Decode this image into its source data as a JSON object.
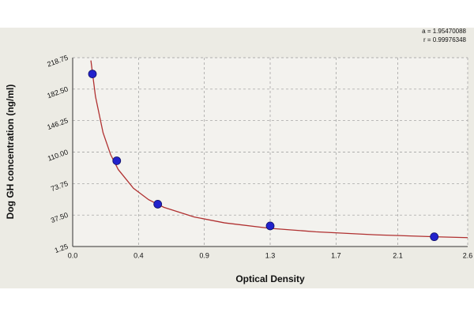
{
  "chart_data": {
    "type": "scatter",
    "x_label": "Optical Density",
    "y_label": "Dog GH concentration (ng/ml)",
    "annotations": [
      "a = 1.95470088",
      "r = 0.99976348"
    ],
    "xlim": [
      0,
      2.6
    ],
    "xticks": [
      {
        "value": 0,
        "label": "0.0"
      },
      {
        "value": 0.4333,
        "label": "0.4"
      },
      {
        "value": 0.8667,
        "label": "0.9"
      },
      1.3,
      {
        "value": 1.7333,
        "label": "1.7"
      },
      {
        "value": 2.14,
        "label": "2.1"
      },
      2.6
    ],
    "ylim": [
      1.25,
      218.75
    ],
    "yticks": [
      1.25,
      {
        "value": 37.5,
        "label": "37.50"
      },
      73.75,
      {
        "value": 110,
        "label": "110.00"
      },
      146.25,
      {
        "value": 182.5,
        "label": "182.50"
      },
      218.75
    ],
    "grid": true,
    "series": [
      {
        "style": "markers",
        "color": "#2222cc",
        "x": [
          0.13,
          0.29,
          0.56,
          1.3,
          2.38
        ],
        "values": [
          200,
          100,
          50,
          25,
          12.5
        ]
      },
      {
        "style": "line",
        "color": "#b03030",
        "x": [
          0.12,
          0.15,
          0.2,
          0.25,
          0.3,
          0.4,
          0.5,
          0.6,
          0.8,
          1.0,
          1.3,
          1.6,
          2.0,
          2.4,
          2.6
        ],
        "values": [
          215.5,
          174.1,
          132.3,
          107.0,
          89.9,
          68.3,
          55.2,
          46.4,
          35.3,
          28.5,
          22.2,
          18.2,
          14.7,
          12.4,
          11.5
        ]
      }
    ]
  }
}
